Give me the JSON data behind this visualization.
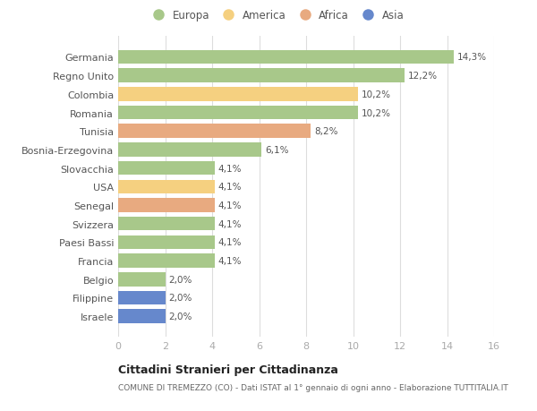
{
  "categories": [
    "Germania",
    "Regno Unito",
    "Colombia",
    "Romania",
    "Tunisia",
    "Bosnia-Erzegovina",
    "Slovacchia",
    "USA",
    "Senegal",
    "Svizzera",
    "Paesi Bassi",
    "Francia",
    "Belgio",
    "Filippine",
    "Israele"
  ],
  "values": [
    14.3,
    12.2,
    10.2,
    10.2,
    8.2,
    6.1,
    4.1,
    4.1,
    4.1,
    4.1,
    4.1,
    4.1,
    2.0,
    2.0,
    2.0
  ],
  "labels": [
    "14,3%",
    "12,2%",
    "10,2%",
    "10,2%",
    "8,2%",
    "6,1%",
    "4,1%",
    "4,1%",
    "4,1%",
    "4,1%",
    "4,1%",
    "4,1%",
    "2,0%",
    "2,0%",
    "2,0%"
  ],
  "continents": [
    "Europa",
    "Europa",
    "America",
    "Europa",
    "Africa",
    "Europa",
    "Europa",
    "America",
    "Africa",
    "Europa",
    "Europa",
    "Europa",
    "Europa",
    "Asia",
    "Asia"
  ],
  "colors": {
    "Europa": "#a8c88a",
    "America": "#f5d080",
    "Africa": "#e8aa80",
    "Asia": "#6688cc"
  },
  "legend_order": [
    "Europa",
    "America",
    "Africa",
    "Asia"
  ],
  "xlim": [
    0,
    16
  ],
  "xticks": [
    0,
    2,
    4,
    6,
    8,
    10,
    12,
    14,
    16
  ],
  "title": "Cittadini Stranieri per Cittadinanza",
  "subtitle": "COMUNE DI TREMEZZO (CO) - Dati ISTAT al 1° gennaio di ogni anno - Elaborazione TUTTITALIA.IT",
  "background_color": "#ffffff",
  "grid_color": "#dddddd",
  "bar_height": 0.75
}
